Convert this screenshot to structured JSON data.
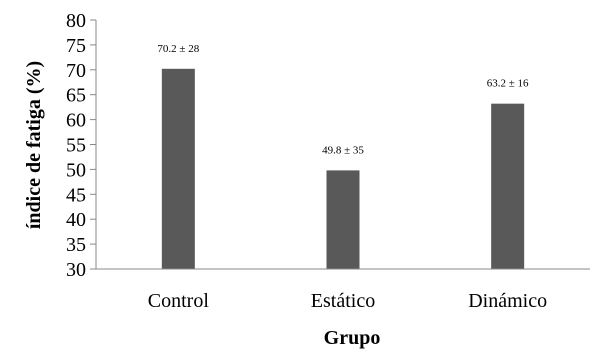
{
  "chart_data": {
    "type": "bar",
    "categories": [
      "Control",
      "Estático",
      "Dinámico"
    ],
    "values": [
      70.2,
      49.8,
      63.2
    ],
    "data_labels": [
      "70.2 ± 28",
      "49.8 ± 35",
      "63.2 ± 16"
    ],
    "xlabel": "Grupo",
    "ylabel": "índice de fatiga (%)",
    "ylim": [
      30,
      80
    ],
    "yticks": [
      30,
      35,
      40,
      45,
      50,
      55,
      60,
      65,
      70,
      75,
      80
    ],
    "grid": false,
    "bar_color": "#595959"
  }
}
